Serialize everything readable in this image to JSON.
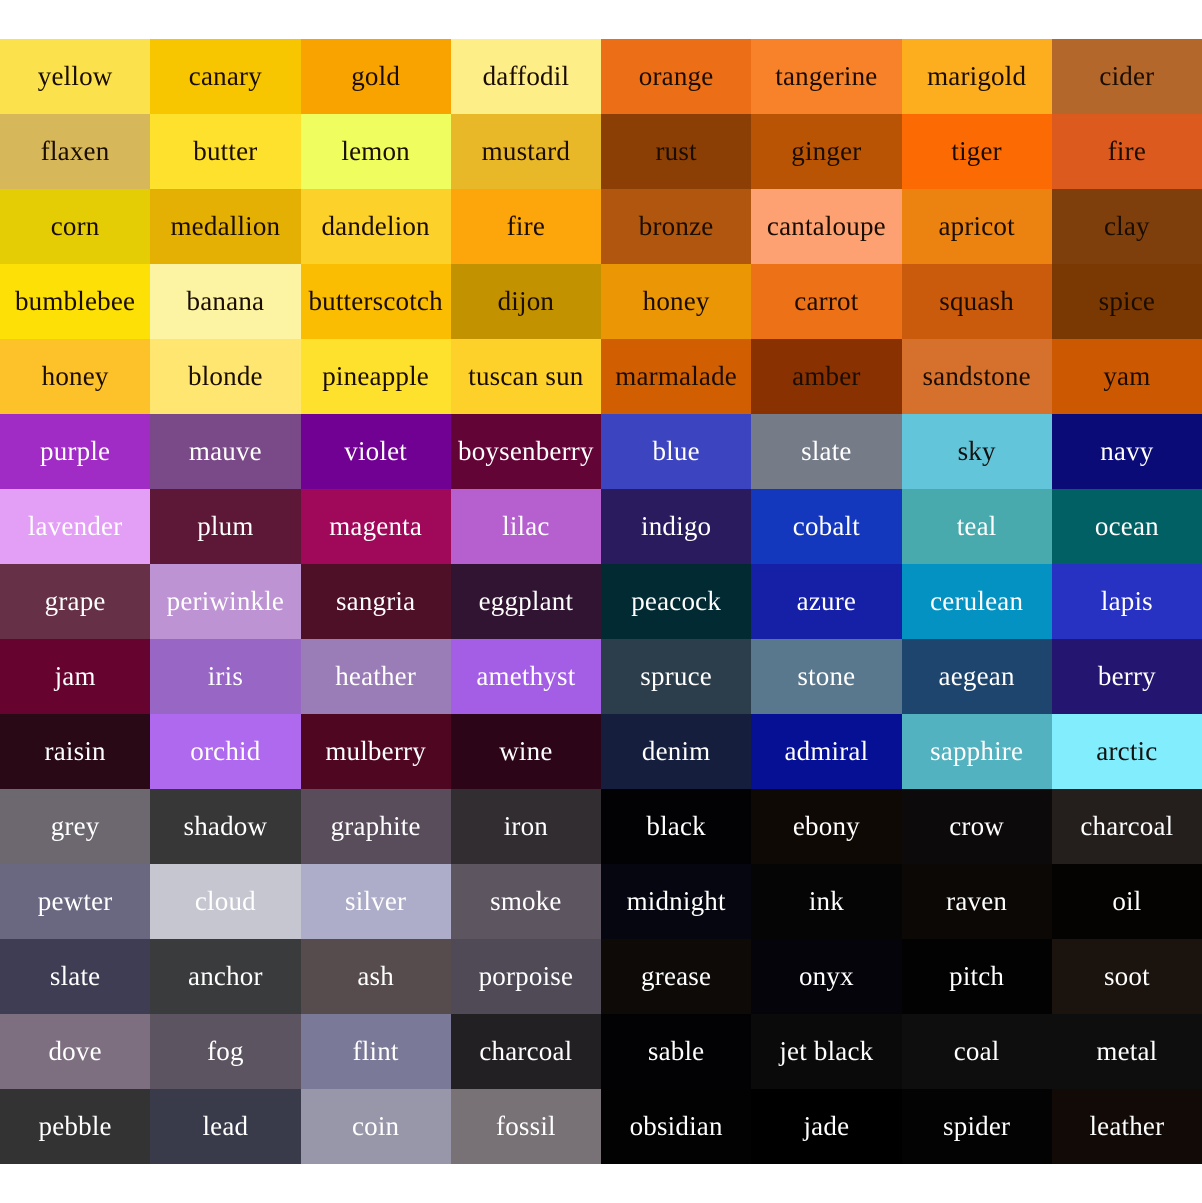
{
  "swatches": [
    [
      {
        "name": "yellow",
        "color": "#FBE14B",
        "text": "#1a0d00"
      },
      {
        "name": "canary",
        "color": "#F8C600",
        "text": "#1a0d00"
      },
      {
        "name": "gold",
        "color": "#F8A300",
        "text": "#1a0d00"
      },
      {
        "name": "daffodil",
        "color": "#FDEE87",
        "text": "#1a0d00"
      },
      {
        "name": "orange",
        "color": "#EC6F17",
        "text": "#1a0d00"
      },
      {
        "name": "tangerine",
        "color": "#F88229",
        "text": "#1a0d00"
      },
      {
        "name": "marigold",
        "color": "#FDAE1E",
        "text": "#1a0d00"
      },
      {
        "name": "cider",
        "color": "#B3672B",
        "text": "#1a0d00"
      }
    ],
    [
      {
        "name": "flaxen",
        "color": "#D6B85A",
        "text": "#1a0d00"
      },
      {
        "name": "butter",
        "color": "#FEE12C",
        "text": "#1a0d00"
      },
      {
        "name": "lemon",
        "color": "#EFFD5F",
        "text": "#1a0d00"
      },
      {
        "name": "mustard",
        "color": "#E8B829",
        "text": "#1a0d00"
      },
      {
        "name": "rust",
        "color": "#8B3F04",
        "text": "#1a0d00"
      },
      {
        "name": "ginger",
        "color": "#B85404",
        "text": "#1a0d00"
      },
      {
        "name": "tiger",
        "color": "#FC6A03",
        "text": "#1a0d00"
      },
      {
        "name": "fire",
        "color": "#DC5A1E",
        "text": "#1a0d00"
      }
    ],
    [
      {
        "name": "corn",
        "color": "#E4CD05",
        "text": "#1a0d00"
      },
      {
        "name": "medallion",
        "color": "#E4B004",
        "text": "#1a0d00"
      },
      {
        "name": "dandelion",
        "color": "#FCD12A",
        "text": "#1a0d00"
      },
      {
        "name": "fire",
        "color": "#FCA60B",
        "text": "#1a0d00"
      },
      {
        "name": "bronze",
        "color": "#B0560F",
        "text": "#1a0d00"
      },
      {
        "name": "cantaloupe",
        "color": "#FDA172",
        "text": "#1a0d00"
      },
      {
        "name": "apricot",
        "color": "#EC820F",
        "text": "#1a0d00"
      },
      {
        "name": "clay",
        "color": "#7F3F0C",
        "text": "#1a0d00"
      }
    ],
    [
      {
        "name": "bumblebee",
        "color": "#FDE005",
        "text": "#1a0d00"
      },
      {
        "name": "banana",
        "color": "#FCF4A3",
        "text": "#1a0d00"
      },
      {
        "name": "butterscotch",
        "color": "#FABD02",
        "text": "#1a0d00"
      },
      {
        "name": "dijon",
        "color": "#C29200",
        "text": "#1a0d00"
      },
      {
        "name": "honey",
        "color": "#EB9605",
        "text": "#1a0d00"
      },
      {
        "name": "carrot",
        "color": "#ED7117",
        "text": "#1a0d00"
      },
      {
        "name": "squash",
        "color": "#CB5B0C",
        "text": "#1a0d00"
      },
      {
        "name": "spice",
        "color": "#7A3803",
        "text": "#1a0d00"
      }
    ],
    [
      {
        "name": "honey",
        "color": "#FDC12A",
        "text": "#1a0d00"
      },
      {
        "name": "blonde",
        "color": "#FEE670",
        "text": "#1a0d00"
      },
      {
        "name": "pineapple",
        "color": "#FDE12D",
        "text": "#1a0d00"
      },
      {
        "name": "tuscan sun",
        "color": "#FDD12A",
        "text": "#1a0d00"
      },
      {
        "name": "marmalade",
        "color": "#D15F02",
        "text": "#1a0d00"
      },
      {
        "name": "amber",
        "color": "#893101",
        "text": "#1a0d00"
      },
      {
        "name": "sandstone",
        "color": "#D5712D",
        "text": "#1a0d00"
      },
      {
        "name": "yam",
        "color": "#CC5801",
        "text": "#1a0d00"
      }
    ],
    [
      {
        "name": "purple",
        "color": "#A02BC5",
        "text": "#ffffff"
      },
      {
        "name": "mauve",
        "color": "#7A4988",
        "text": "#ffffff"
      },
      {
        "name": "violet",
        "color": "#710193",
        "text": "#ffffff"
      },
      {
        "name": "boysenberry",
        "color": "#630436",
        "text": "#ffffff"
      },
      {
        "name": "blue",
        "color": "#3D44C0",
        "text": "#ffffff"
      },
      {
        "name": "slate",
        "color": "#757C88",
        "text": "#ffffff"
      },
      {
        "name": "sky",
        "color": "#62C5DA",
        "text": "#111111"
      },
      {
        "name": "navy",
        "color": "#0B0B77",
        "text": "#ffffff"
      }
    ],
    [
      {
        "name": "lavender",
        "color": "#E39FF6",
        "text": "#ffffff"
      },
      {
        "name": "plum",
        "color": "#5C1836",
        "text": "#ffffff"
      },
      {
        "name": "magenta",
        "color": "#A0085A",
        "text": "#ffffff"
      },
      {
        "name": "lilac",
        "color": "#B65FCF",
        "text": "#ffffff"
      },
      {
        "name": "indigo",
        "color": "#2A1B5E",
        "text": "#ffffff"
      },
      {
        "name": "cobalt",
        "color": "#1338BE",
        "text": "#ffffff"
      },
      {
        "name": "teal",
        "color": "#48AAAD",
        "text": "#ffffff"
      },
      {
        "name": "ocean",
        "color": "#016064",
        "text": "#ffffff"
      }
    ],
    [
      {
        "name": "grape",
        "color": "#663046",
        "text": "#ffffff"
      },
      {
        "name": "periwinkle",
        "color": "#BD93D3",
        "text": "#ffffff"
      },
      {
        "name": "sangria",
        "color": "#4E1027",
        "text": "#ffffff"
      },
      {
        "name": "eggplant",
        "color": "#311432",
        "text": "#ffffff"
      },
      {
        "name": "peacock",
        "color": "#012A33",
        "text": "#ffffff"
      },
      {
        "name": "azure",
        "color": "#1520A6",
        "text": "#ffffff"
      },
      {
        "name": "cerulean",
        "color": "#0492C2",
        "text": "#ffffff"
      },
      {
        "name": "lapis",
        "color": "#2832C2",
        "text": "#ffffff"
      }
    ],
    [
      {
        "name": "jam",
        "color": "#67032F",
        "text": "#ffffff"
      },
      {
        "name": "iris",
        "color": "#9866C5",
        "text": "#ffffff"
      },
      {
        "name": "heather",
        "color": "#9A7CB6",
        "text": "#ffffff"
      },
      {
        "name": "amethyst",
        "color": "#A45EE5",
        "text": "#ffffff"
      },
      {
        "name": "spruce",
        "color": "#2C3E4C",
        "text": "#ffffff"
      },
      {
        "name": "stone",
        "color": "#59788E",
        "text": "#ffffff"
      },
      {
        "name": "aegean",
        "color": "#1E456E",
        "text": "#ffffff"
      },
      {
        "name": "berry",
        "color": "#241571",
        "text": "#ffffff"
      }
    ],
    [
      {
        "name": "raisin",
        "color": "#290916",
        "text": "#ffffff"
      },
      {
        "name": "orchid",
        "color": "#AF69EE",
        "text": "#ffffff"
      },
      {
        "name": "mulberry",
        "color": "#4E0621",
        "text": "#ffffff"
      },
      {
        "name": "wine",
        "color": "#2C0519",
        "text": "#ffffff"
      },
      {
        "name": "denim",
        "color": "#151E3D",
        "text": "#ffffff"
      },
      {
        "name": "admiral",
        "color": "#061094",
        "text": "#ffffff"
      },
      {
        "name": "sapphire",
        "color": "#52B2BF",
        "text": "#ffffff"
      },
      {
        "name": "arctic",
        "color": "#82EEFD",
        "text": "#111111"
      }
    ],
    [
      {
        "name": "grey",
        "color": "#6D6870",
        "text": "#ffffff"
      },
      {
        "name": "shadow",
        "color": "#373737",
        "text": "#ffffff"
      },
      {
        "name": "graphite",
        "color": "#594D5B",
        "text": "#ffffff"
      },
      {
        "name": "iron",
        "color": "#322D31",
        "text": "#ffffff"
      },
      {
        "name": "black",
        "color": "#020204",
        "text": "#ffffff"
      },
      {
        "name": "ebony",
        "color": "#0F0906",
        "text": "#ffffff"
      },
      {
        "name": "crow",
        "color": "#0C0A0B",
        "text": "#ffffff"
      },
      {
        "name": "charcoal",
        "color": "#241F1D",
        "text": "#ffffff"
      }
    ],
    [
      {
        "name": "pewter",
        "color": "#696880",
        "text": "#ffffff"
      },
      {
        "name": "cloud",
        "color": "#C5C6D0",
        "text": "#ffffff"
      },
      {
        "name": "silver",
        "color": "#ADADC9",
        "text": "#ffffff"
      },
      {
        "name": "smoke",
        "color": "#5D5560",
        "text": "#ffffff"
      },
      {
        "name": "midnight",
        "color": "#060610",
        "text": "#ffffff"
      },
      {
        "name": "ink",
        "color": "#050505",
        "text": "#ffffff"
      },
      {
        "name": "raven",
        "color": "#0B0806",
        "text": "#ffffff"
      },
      {
        "name": "oil",
        "color": "#050302",
        "text": "#ffffff"
      }
    ],
    [
      {
        "name": "slate",
        "color": "#3E3D53",
        "text": "#ffffff"
      },
      {
        "name": "anchor",
        "color": "#3A3B3C",
        "text": "#ffffff"
      },
      {
        "name": "ash",
        "color": "#564C4D",
        "text": "#ffffff"
      },
      {
        "name": "porpoise",
        "color": "#4F4A56",
        "text": "#ffffff"
      },
      {
        "name": "grease",
        "color": "#0E0A08",
        "text": "#ffffff"
      },
      {
        "name": "onyx",
        "color": "#06040B",
        "text": "#ffffff"
      },
      {
        "name": "pitch",
        "color": "#020202",
        "text": "#ffffff"
      },
      {
        "name": "soot",
        "color": "#1B130E",
        "text": "#ffffff"
      }
    ],
    [
      {
        "name": "dove",
        "color": "#7E6F80",
        "text": "#ffffff"
      },
      {
        "name": "fog",
        "color": "#5C5461",
        "text": "#ffffff"
      },
      {
        "name": "flint",
        "color": "#7B7998",
        "text": "#ffffff"
      },
      {
        "name": "charcoal",
        "color": "#232023",
        "text": "#ffffff"
      },
      {
        "name": "sable",
        "color": "#020204",
        "text": "#ffffff"
      },
      {
        "name": "jet black",
        "color": "#0A0A0A",
        "text": "#ffffff"
      },
      {
        "name": "coal",
        "color": "#0E0E0E",
        "text": "#ffffff"
      },
      {
        "name": "metal",
        "color": "#0E0E0F",
        "text": "#ffffff"
      }
    ],
    [
      {
        "name": "pebble",
        "color": "#333333",
        "text": "#ffffff"
      },
      {
        "name": "lead",
        "color": "#393B4B",
        "text": "#ffffff"
      },
      {
        "name": "coin",
        "color": "#9897A9",
        "text": "#ffffff"
      },
      {
        "name": "fossil",
        "color": "#787276",
        "text": "#ffffff"
      },
      {
        "name": "obsidian",
        "color": "#020202",
        "text": "#ffffff"
      },
      {
        "name": "jade",
        "color": "#000000",
        "text": "#ffffff"
      },
      {
        "name": "spider",
        "color": "#030303",
        "text": "#ffffff"
      },
      {
        "name": "leather",
        "color": "#110A07",
        "text": "#ffffff"
      }
    ]
  ]
}
